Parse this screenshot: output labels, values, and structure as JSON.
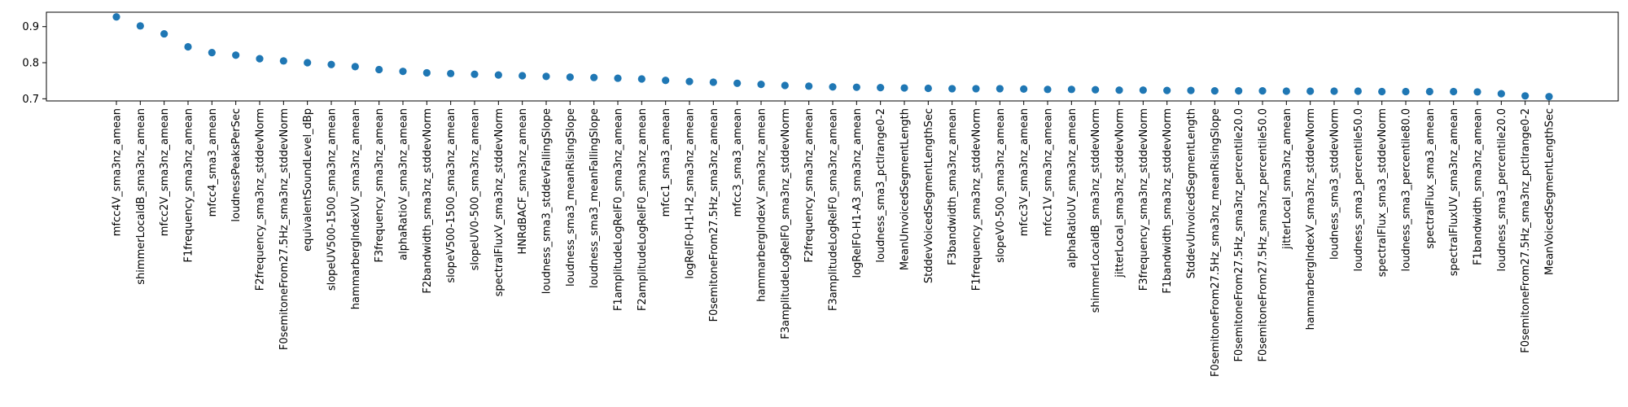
{
  "chart_data": {
    "type": "scatter",
    "categories": [
      "mfcc4V_sma3nz_amean",
      "shimmerLocaldB_sma3nz_amean",
      "mfcc2V_sma3nz_amean",
      "F1frequency_sma3nz_amean",
      "mfcc4_sma3_amean",
      "loudnessPeaksPerSec",
      "F2frequency_sma3nz_stddevNorm",
      "F0semitoneFrom27.5Hz_sma3nz_stddevNorm",
      "equivalentSoundLevel_dBp",
      "slopeUV500-1500_sma3nz_amean",
      "hammarbergIndexUV_sma3nz_amean",
      "F3frequency_sma3nz_amean",
      "alphaRatioV_sma3nz_amean",
      "F2bandwidth_sma3nz_stddevNorm",
      "slopeV500-1500_sma3nz_amean",
      "slopeUV0-500_sma3nz_amean",
      "spectralFluxV_sma3nz_stddevNorm",
      "HNRdBACF_sma3nz_amean",
      "loudness_sma3_stddevFallingSlope",
      "loudness_sma3_meanRisingSlope",
      "loudness_sma3_meanFallingSlope",
      "F1amplitudeLogRelF0_sma3nz_amean",
      "F2amplitudeLogRelF0_sma3nz_amean",
      "mfcc1_sma3_amean",
      "logRelF0-H1-H2_sma3nz_amean",
      "F0semitoneFrom27.5Hz_sma3nz_amean",
      "mfcc3_sma3_amean",
      "hammarbergIndexV_sma3nz_amean",
      "F3amplitudeLogRelF0_sma3nz_stddevNorm",
      "F2frequency_sma3nz_amean",
      "F3amplitudeLogRelF0_sma3nz_amean",
      "logRelF0-H1-A3_sma3nz_amean",
      "loudness_sma3_pctlrange0-2",
      "MeanUnvoicedSegmentLength",
      "StddevVoicedSegmentLengthSec",
      "F3bandwidth_sma3nz_amean",
      "F1frequency_sma3nz_stddevNorm",
      "slopeV0-500_sma3nz_amean",
      "mfcc3V_sma3nz_amean",
      "mfcc1V_sma3nz_amean",
      "alphaRatioUV_sma3nz_amean",
      "shimmerLocaldB_sma3nz_stddevNorm",
      "jitterLocal_sma3nz_stddevNorm",
      "F3frequency_sma3nz_stddevNorm",
      "F1bandwidth_sma3nz_stddevNorm",
      "StddevUnvoicedSegmentLength",
      "F0semitoneFrom27.5Hz_sma3nz_meanRisingSlope",
      "F0semitoneFrom27.5Hz_sma3nz_percentile20.0",
      "F0semitoneFrom27.5Hz_sma3nz_percentile50.0",
      "jitterLocal_sma3nz_amean",
      "hammarbergIndexV_sma3nz_stddevNorm",
      "loudness_sma3_stddevNorm",
      "loudness_sma3_percentile50.0",
      "spectralFlux_sma3_stddevNorm",
      "loudness_sma3_percentile80.0",
      "spectralFlux_sma3_amean",
      "spectralFluxUV_sma3nz_amean",
      "F1bandwidth_sma3nz_amean",
      "loudness_sma3_percentile20.0",
      "F0semitoneFrom27.5Hz_sma3nz_pctlrange0-2",
      "MeanVoicedSegmentLengthSec"
    ],
    "values": [
      0.927,
      0.902,
      0.88,
      0.844,
      0.828,
      0.821,
      0.811,
      0.805,
      0.8,
      0.795,
      0.789,
      0.781,
      0.776,
      0.772,
      0.77,
      0.768,
      0.766,
      0.764,
      0.762,
      0.76,
      0.759,
      0.757,
      0.755,
      0.751,
      0.748,
      0.746,
      0.743,
      0.74,
      0.737,
      0.735,
      0.733,
      0.732,
      0.731,
      0.73,
      0.729,
      0.728,
      0.728,
      0.728,
      0.727,
      0.726,
      0.726,
      0.725,
      0.724,
      0.724,
      0.723,
      0.723,
      0.722,
      0.722,
      0.722,
      0.721,
      0.721,
      0.721,
      0.721,
      0.72,
      0.72,
      0.72,
      0.72,
      0.719,
      0.714,
      0.708,
      0.706
    ],
    "yticks": [
      "0.7",
      "0.8",
      "0.9"
    ],
    "ylim": [
      0.694,
      0.94
    ],
    "title": "",
    "xlabel": "",
    "ylabel": "",
    "grid": false,
    "colors": {
      "point": "#1f77b4",
      "axis": "#000000"
    }
  }
}
